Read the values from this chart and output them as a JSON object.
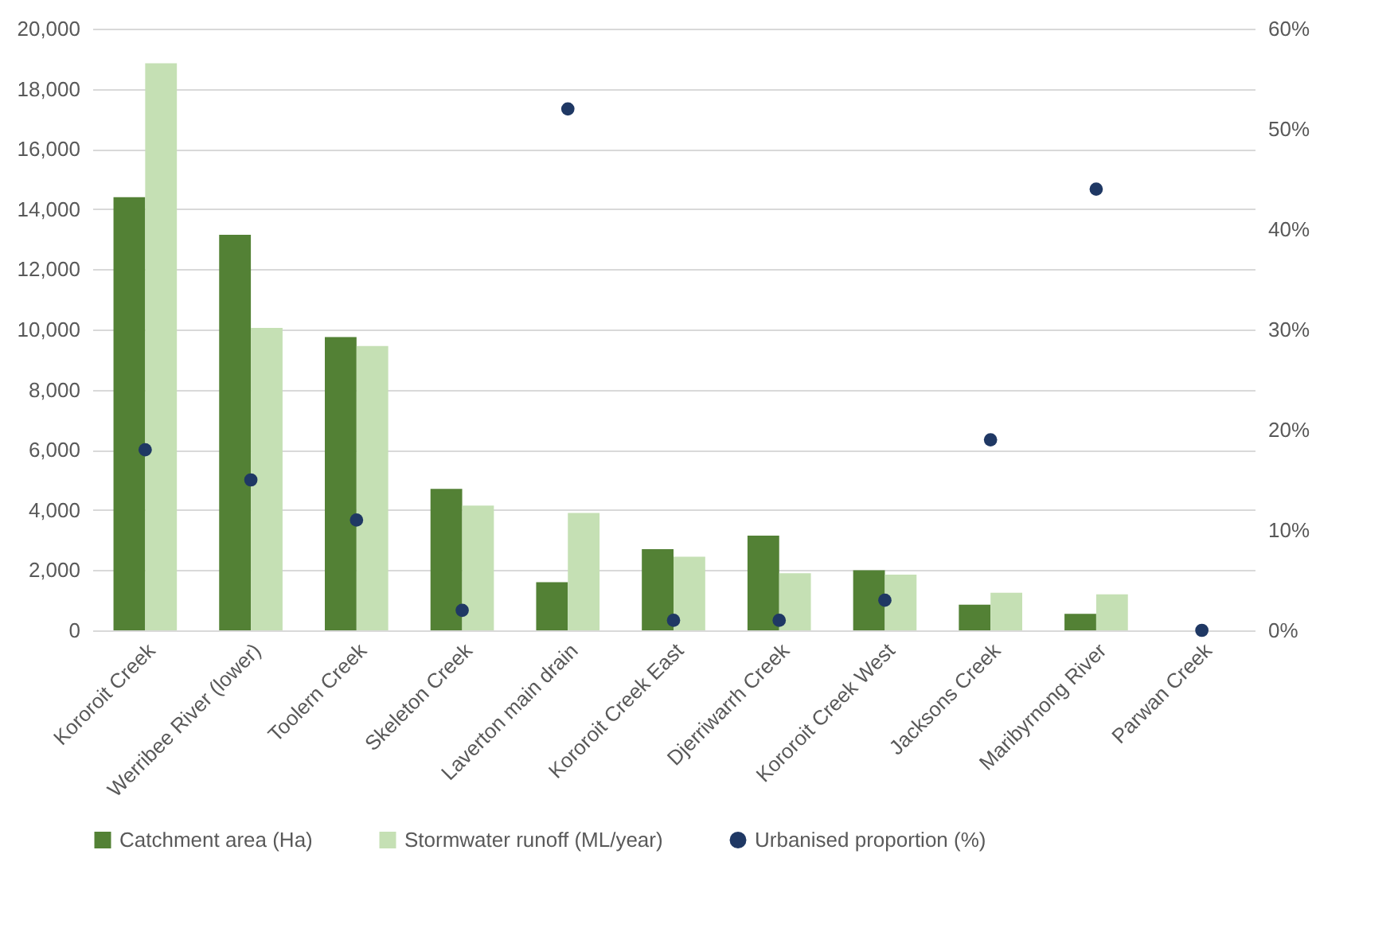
{
  "chart_data": {
    "type": "bar",
    "categories": [
      "Kororoit Creek",
      "Werribee River (lower)",
      "Toolern Creek",
      "Skeleton Creek",
      "Laverton main drain",
      "Kororoit Creek East",
      "Djerriwarrh Creek",
      "Kororoit Creek West",
      "Jacksons Creek",
      "Maribyrnong River",
      "Parwan Creek"
    ],
    "series": [
      {
        "name": "Catchment area (Ha)",
        "color": "#538135",
        "values": [
          14400,
          13150,
          9750,
          4700,
          1600,
          2700,
          3150,
          2000,
          850,
          550,
          0
        ]
      },
      {
        "name": "Stormwater runoff (ML/year)",
        "color": "#c5e0b4",
        "values": [
          18850,
          10050,
          9450,
          4150,
          3900,
          2450,
          1900,
          1850,
          1250,
          1200,
          0
        ]
      },
      {
        "name": "Urbanised proportion (%)",
        "color": "#1f3864",
        "type": "scatter",
        "axis": "y2",
        "values": [
          18,
          15,
          11,
          2,
          52,
          1,
          1,
          3,
          19,
          44,
          0
        ]
      }
    ],
    "ylim": [
      0,
      20000
    ],
    "yticks": [
      {
        "value": 0,
        "label": "0"
      },
      {
        "value": 2000,
        "label": "2,000"
      },
      {
        "value": 4000,
        "label": "4,000"
      },
      {
        "value": 6000,
        "label": "6,000"
      },
      {
        "value": 8000,
        "label": "8,000"
      },
      {
        "value": 10000,
        "label": "10,000"
      },
      {
        "value": 12000,
        "label": "12,000"
      },
      {
        "value": 14000,
        "label": "14,000"
      },
      {
        "value": 16000,
        "label": "16,000"
      },
      {
        "value": 18000,
        "label": "18,000"
      },
      {
        "value": 20000,
        "label": "20,000"
      }
    ],
    "y2lim": [
      0,
      60
    ],
    "y2ticks": [
      {
        "value": 0,
        "label": "0%"
      },
      {
        "value": 10,
        "label": "10%"
      },
      {
        "value": 20,
        "label": "20%"
      },
      {
        "value": 30,
        "label": "30%"
      },
      {
        "value": 40,
        "label": "40%"
      },
      {
        "value": 50,
        "label": "50%"
      },
      {
        "value": 60,
        "label": "60%"
      }
    ],
    "grid": "y",
    "legend": "bottom",
    "marker": "circle"
  }
}
